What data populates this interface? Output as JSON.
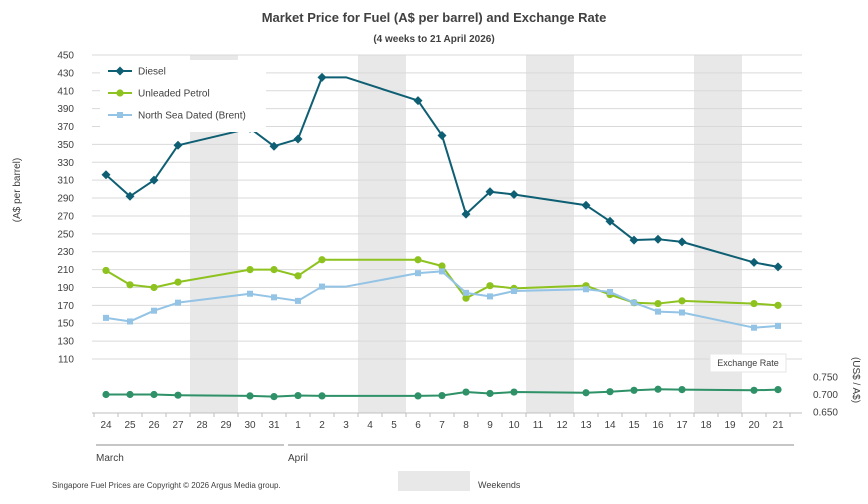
{
  "chart_data": {
    "type": "line",
    "title": "Market Price for Fuel (A$ per barrel) and Exchange Rate",
    "subtitle": "(4 weeks to 21 April 2026)",
    "ylabel": "(A$ per barrel)",
    "ylabel_right": "(US$ / A$)",
    "ylim": [
      110,
      450
    ],
    "yticks": [
      "450",
      "430",
      "410",
      "390",
      "370",
      "350",
      "330",
      "310",
      "290",
      "270",
      "250",
      "230",
      "210",
      "190",
      "170",
      "150",
      "130",
      "110"
    ],
    "ylim_right": [
      0.65,
      0.75
    ],
    "yticks_right": [
      "0.750",
      "0.700",
      "0.650"
    ],
    "categories": [
      "24",
      "25",
      "26",
      "27",
      "28",
      "29",
      "30",
      "31",
      "1",
      "2",
      "3",
      "4",
      "5",
      "6",
      "7",
      "8",
      "9",
      "10",
      "11",
      "12",
      "13",
      "14",
      "15",
      "16",
      "17",
      "18",
      "19",
      "20",
      "21"
    ],
    "months": [
      {
        "label": "March",
        "start": "24",
        "end": "31"
      },
      {
        "label": "April",
        "start": "1",
        "end": "21"
      }
    ],
    "weekend_bands": [
      [
        "28",
        "29"
      ],
      [
        "4",
        "5"
      ],
      [
        "11",
        "12"
      ],
      [
        "18",
        "19"
      ]
    ],
    "series": [
      {
        "name": "Diesel",
        "color": "#0e5f73",
        "marker": "diamond",
        "values": [
          316,
          292,
          310,
          349,
          null,
          null,
          368,
          348,
          356,
          425,
          425,
          null,
          null,
          399,
          360,
          272,
          297,
          294,
          null,
          null,
          282,
          264,
          243,
          244,
          241,
          null,
          null,
          218,
          213
        ]
      },
      {
        "name": "Unleaded Petrol",
        "color": "#8dc21f",
        "marker": "circle",
        "values": [
          209,
          193,
          190,
          196,
          null,
          null,
          210,
          210,
          203,
          221,
          221,
          null,
          null,
          221,
          214,
          178,
          192,
          189,
          null,
          null,
          192,
          182,
          173,
          172,
          175,
          null,
          null,
          172,
          170
        ]
      },
      {
        "name": "North Sea Dated (Brent)",
        "color": "#93c3e5",
        "marker": "square",
        "values": [
          156,
          152,
          164,
          173,
          null,
          null,
          183,
          179,
          175,
          191,
          191,
          null,
          null,
          206,
          208,
          184,
          180,
          186,
          null,
          null,
          188,
          185,
          173,
          163,
          162,
          null,
          null,
          145,
          147
        ]
      },
      {
        "name": "Exchange Rate",
        "color": "#2e9167",
        "marker": "circle",
        "axis": "right",
        "values": [
          0.7,
          0.7,
          0.7,
          0.698,
          null,
          null,
          0.696,
          0.694,
          0.697,
          0.696,
          0.696,
          null,
          null,
          0.696,
          0.697,
          0.707,
          0.703,
          0.707,
          null,
          null,
          0.705,
          0.708,
          0.712,
          0.715,
          0.714,
          null,
          null,
          0.712,
          0.714
        ]
      }
    ],
    "exchange_rate_label": "Exchange Rate",
    "legend_entries": [
      "Diesel",
      "Unleaded Petrol",
      "North Sea Dated (Brent)"
    ],
    "footer": "Singapore Fuel Prices are Copyright © 2026 Argus Media group.",
    "weekends_label": "Weekends"
  }
}
